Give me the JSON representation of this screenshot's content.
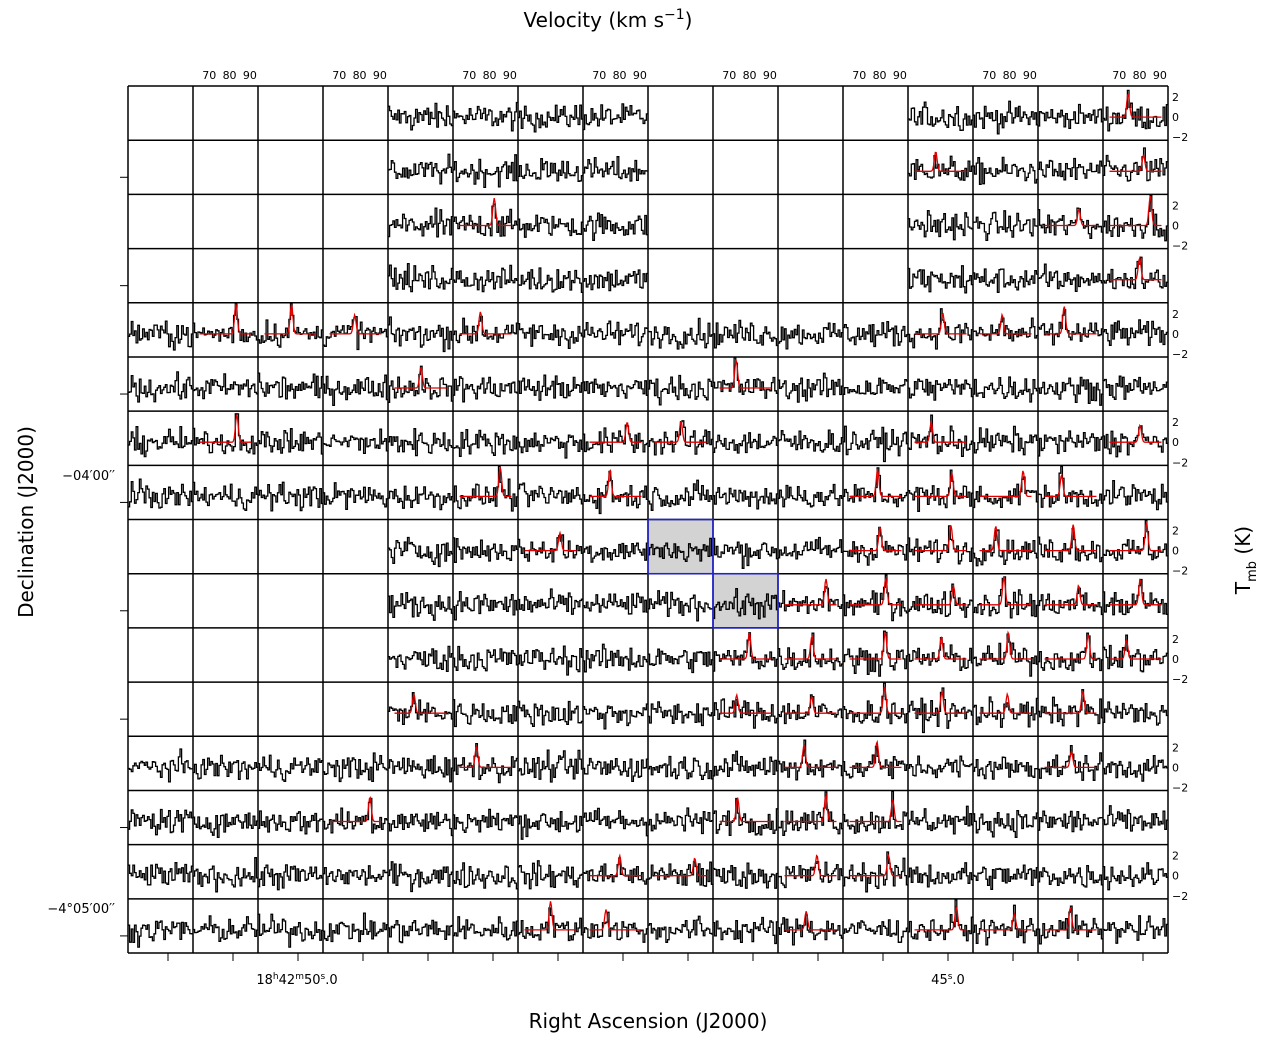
{
  "figure": {
    "top_axis_label": {
      "text": "Velocity (km s",
      "sup": "−1",
      "end": ")"
    },
    "bottom_axis_label": "Right Ascension (J2000)",
    "left_axis_label": "Declination (J2000)",
    "right_axis_label": {
      "text": "T",
      "sub": "mb",
      "end": " (K)"
    },
    "velocity_ticks": [
      70,
      80,
      90
    ],
    "xlim": [
      62,
      94
    ],
    "tmb_ticks": [
      2,
      0,
      {
        "value": -2,
        "label": "−2"
      }
    ],
    "ylim": [
      -2.3,
      3.1
    ],
    "dec_ticks": [
      "−04′00′′",
      "−4°05′00′′"
    ],
    "ra_ticks": [
      {
        "parts": [
          "18",
          "h",
          "42",
          "m",
          "50",
          "s",
          ".0"
        ]
      },
      {
        "parts": [
          "45",
          "s",
          ".0"
        ]
      }
    ],
    "grid_rows": [
      "....DDDD....DDDF",
      "....DDDD....FDDF",
      "....DFDD....DDFF",
      "....DDDD....DDDF",
      "DFFFDFDDDDDDFFFD",
      "DDDDFDDDDFDDDDDD",
      "DFDDDDDFFDDDFDDF",
      "DDDDDFDFDDDFFFFD",
      "....DDFDHDDFFFFF",
      "....DDDDDHFFFFFF",
      "....DDDDDFFFFFFF",
      "....FDDDDFFFFFFD",
      "DDDDDFDDDDFFDDFD",
      "DDDFDDDDDFFFDDDD",
      "DDDDDDDFFDFFDDDD",
      "DDDDDDFFDDFDFFFD"
    ]
  }
}
